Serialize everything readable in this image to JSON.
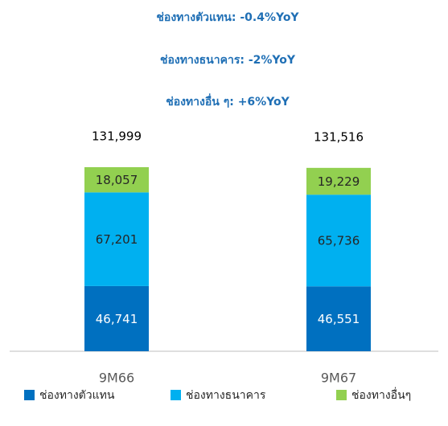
{
  "chart_data": {
    "type": "stacked_bar",
    "annotations": [
      "ช่องทางตัวแทน: -0.4%YoY",
      "ช่องทางธนาคาร: -2%YoY",
      "ช่องทางอื่น ๆ: +6%YoY"
    ],
    "categories": [
      "9M66",
      "9M67"
    ],
    "series": [
      {
        "name": "ช่องทางตัวแทน",
        "color": "#0070c0",
        "label_color": "#ffffff",
        "values": [
          46741,
          46551
        ],
        "value_labels": [
          "46,741",
          "46,551"
        ]
      },
      {
        "name": "ช่องทางธนาคาร",
        "color": "#00b0f0",
        "label_color": "#262626",
        "values": [
          67201,
          65736
        ],
        "value_labels": [
          "67,201",
          "65,736"
        ]
      },
      {
        "name": "ช่องทางอื่นๆ",
        "color": "#92d050",
        "label_color": "#262626",
        "values": [
          18057,
          19229
        ],
        "value_labels": [
          "18,057",
          "19,229"
        ]
      }
    ],
    "totals": [
      131999,
      131516
    ],
    "total_labels": [
      "131,999",
      "131,516"
    ]
  }
}
